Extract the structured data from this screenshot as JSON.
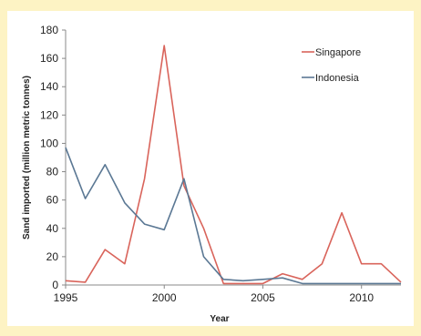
{
  "chart_data": {
    "type": "line",
    "xlabel": "Year",
    "ylabel": "Sand imported (million metric tonnes)",
    "xlim": [
      1995,
      2012
    ],
    "ylim": [
      0,
      180
    ],
    "x_ticks": [
      1995,
      2000,
      2005,
      2010
    ],
    "y_ticks": [
      0,
      20,
      40,
      60,
      80,
      100,
      120,
      140,
      160,
      180
    ],
    "grid": false,
    "legend": "top-right",
    "x": [
      1995,
      1996,
      1997,
      1998,
      1999,
      2000,
      2001,
      2002,
      2003,
      2004,
      2005,
      2006,
      2007,
      2008,
      2009,
      2010,
      2011,
      2012
    ],
    "series": [
      {
        "name": "Singapore",
        "color": "#d9645b",
        "values": [
          3,
          2,
          25,
          15,
          75,
          169,
          70,
          40,
          1,
          1,
          1,
          8,
          4,
          15,
          51,
          15,
          15,
          2
        ]
      },
      {
        "name": "Indonesia",
        "color": "#5b7894",
        "values": [
          97,
          61,
          85,
          58,
          43,
          39,
          75,
          20,
          4,
          3,
          4,
          5,
          1,
          1,
          1,
          1,
          1,
          1
        ]
      }
    ]
  }
}
